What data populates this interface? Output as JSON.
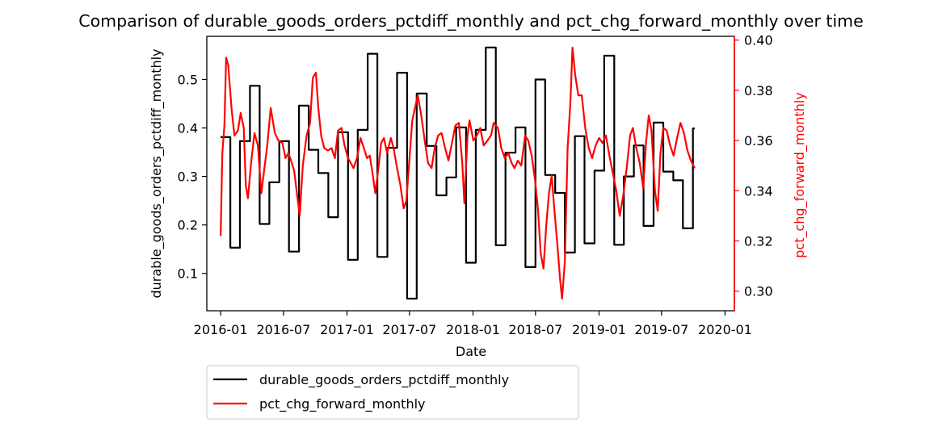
{
  "chart_data": {
    "type": "line",
    "title": "Comparison of durable_goods_orders_pctdiff_monthly and pct_chg_forward_monthly over time",
    "xlabel": "Date",
    "ylabel_left": "durable_goods_orders_pctdiff_monthly",
    "ylabel_right": "pct_chg_forward_monthly",
    "xlim": [
      "2015-11-22",
      "2020-01-28"
    ],
    "ylim_left": [
      0.023,
      0.589
    ],
    "ylim_right": [
      0.2922,
      0.4015
    ],
    "x_ticks": [
      "2016-01",
      "2016-07",
      "2017-01",
      "2017-07",
      "2018-01",
      "2018-07",
      "2019-01",
      "2019-07",
      "2020-01"
    ],
    "y_ticks_left": [
      0.1,
      0.2,
      0.3,
      0.4,
      0.5
    ],
    "y_ticks_right": [
      0.3,
      0.32,
      0.34,
      0.36,
      0.38,
      0.4
    ],
    "grid": false,
    "legend_position": "below-left",
    "colors": {
      "left_series": "#000000",
      "right_series": "#ff0000",
      "axis_text": "#000000",
      "right_axis": "#ff0000"
    },
    "series": [
      {
        "name": "durable_goods_orders_pctdiff_monthly",
        "axis": "left",
        "step": true,
        "points": [
          [
            "2016-01-01",
            0.381
          ],
          [
            "2016-01-29",
            0.153
          ],
          [
            "2016-02-26",
            0.373
          ],
          [
            "2016-03-26",
            0.487
          ],
          [
            "2016-04-23",
            0.202
          ],
          [
            "2016-05-21",
            0.288
          ],
          [
            "2016-06-19",
            0.373
          ],
          [
            "2016-07-17",
            0.145
          ],
          [
            "2016-08-15",
            0.446
          ],
          [
            "2016-09-12",
            0.355
          ],
          [
            "2016-10-10",
            0.307
          ],
          [
            "2016-11-08",
            0.216
          ],
          [
            "2016-12-06",
            0.391
          ],
          [
            "2017-01-04",
            0.128
          ],
          [
            "2017-02-01",
            0.396
          ],
          [
            "2017-03-02",
            0.553
          ],
          [
            "2017-03-30",
            0.134
          ],
          [
            "2017-04-28",
            0.359
          ],
          [
            "2017-05-26",
            0.514
          ],
          [
            "2017-06-24",
            0.048
          ],
          [
            "2017-07-22",
            0.471
          ],
          [
            "2017-08-20",
            0.363
          ],
          [
            "2017-09-17",
            0.261
          ],
          [
            "2017-10-16",
            0.298
          ],
          [
            "2017-11-13",
            0.401
          ],
          [
            "2017-12-12",
            0.122
          ],
          [
            "2018-01-09",
            0.396
          ],
          [
            "2018-02-07",
            0.566
          ],
          [
            "2018-03-08",
            0.158
          ],
          [
            "2018-04-05",
            0.349
          ],
          [
            "2018-05-04",
            0.401
          ],
          [
            "2018-06-02",
            0.113
          ],
          [
            "2018-07-01",
            0.5
          ],
          [
            "2018-07-29",
            0.303
          ],
          [
            "2018-08-27",
            0.266
          ],
          [
            "2018-09-24",
            0.143
          ],
          [
            "2018-10-23",
            0.383
          ],
          [
            "2018-11-20",
            0.162
          ],
          [
            "2018-12-19",
            0.312
          ],
          [
            "2019-01-16",
            0.549
          ],
          [
            "2019-02-14",
            0.159
          ],
          [
            "2019-03-14",
            0.3
          ],
          [
            "2019-04-12",
            0.364
          ],
          [
            "2019-05-10",
            0.198
          ],
          [
            "2019-06-08",
            0.411
          ],
          [
            "2019-07-06",
            0.31
          ],
          [
            "2019-08-04",
            0.292
          ],
          [
            "2019-09-01",
            0.193
          ],
          [
            "2019-09-30",
            0.399
          ],
          [
            "2019-10-05",
            0.399
          ]
        ]
      },
      {
        "name": "pct_chg_forward_monthly",
        "axis": "right",
        "step": false,
        "points": [
          [
            "2016-01-01",
            0.322
          ],
          [
            "2016-01-06",
            0.355
          ],
          [
            "2016-01-12",
            0.366
          ],
          [
            "2016-01-17",
            0.393
          ],
          [
            "2016-01-23",
            0.39
          ],
          [
            "2016-02-02",
            0.372
          ],
          [
            "2016-02-10",
            0.362
          ],
          [
            "2016-02-20",
            0.364
          ],
          [
            "2016-02-28",
            0.371
          ],
          [
            "2016-03-08",
            0.365
          ],
          [
            "2016-03-14",
            0.342
          ],
          [
            "2016-03-20",
            0.337
          ],
          [
            "2016-03-30",
            0.352
          ],
          [
            "2016-04-08",
            0.363
          ],
          [
            "2016-04-18",
            0.358
          ],
          [
            "2016-04-28",
            0.339
          ],
          [
            "2016-05-06",
            0.348
          ],
          [
            "2016-05-15",
            0.358
          ],
          [
            "2016-05-25",
            0.373
          ],
          [
            "2016-06-06",
            0.363
          ],
          [
            "2016-06-16",
            0.36
          ],
          [
            "2016-06-28",
            0.359
          ],
          [
            "2016-07-07",
            0.353
          ],
          [
            "2016-07-15",
            0.355
          ],
          [
            "2016-07-23",
            0.352
          ],
          [
            "2016-08-01",
            0.348
          ],
          [
            "2016-08-09",
            0.339
          ],
          [
            "2016-08-17",
            0.33
          ],
          [
            "2016-08-26",
            0.35
          ],
          [
            "2016-09-06",
            0.362
          ],
          [
            "2016-09-16",
            0.367
          ],
          [
            "2016-09-24",
            0.385
          ],
          [
            "2016-10-03",
            0.387
          ],
          [
            "2016-10-10",
            0.373
          ],
          [
            "2016-10-18",
            0.362
          ],
          [
            "2016-10-27",
            0.357
          ],
          [
            "2016-11-07",
            0.356
          ],
          [
            "2016-11-17",
            0.357
          ],
          [
            "2016-11-27",
            0.353
          ],
          [
            "2016-12-06",
            0.364
          ],
          [
            "2016-12-16",
            0.365
          ],
          [
            "2016-12-25",
            0.358
          ],
          [
            "2017-01-04",
            0.353
          ],
          [
            "2017-01-12",
            0.351
          ],
          [
            "2017-01-20",
            0.349
          ],
          [
            "2017-01-30",
            0.353
          ],
          [
            "2017-02-09",
            0.361
          ],
          [
            "2017-02-19",
            0.357
          ],
          [
            "2017-02-28",
            0.353
          ],
          [
            "2017-03-08",
            0.354
          ],
          [
            "2017-03-16",
            0.347
          ],
          [
            "2017-03-24",
            0.339
          ],
          [
            "2017-04-02",
            0.349
          ],
          [
            "2017-04-10",
            0.359
          ],
          [
            "2017-04-18",
            0.361
          ],
          [
            "2017-04-27",
            0.355
          ],
          [
            "2017-05-08",
            0.361
          ],
          [
            "2017-05-16",
            0.357
          ],
          [
            "2017-05-26",
            0.349
          ],
          [
            "2017-06-05",
            0.342
          ],
          [
            "2017-06-14",
            0.333
          ],
          [
            "2017-06-22",
            0.336
          ],
          [
            "2017-07-01",
            0.353
          ],
          [
            "2017-07-09",
            0.368
          ],
          [
            "2017-07-17",
            0.373
          ],
          [
            "2017-07-25",
            0.378
          ],
          [
            "2017-08-04",
            0.37
          ],
          [
            "2017-08-14",
            0.36
          ],
          [
            "2017-08-24",
            0.351
          ],
          [
            "2017-09-03",
            0.349
          ],
          [
            "2017-09-12",
            0.357
          ],
          [
            "2017-09-22",
            0.362
          ],
          [
            "2017-10-02",
            0.363
          ],
          [
            "2017-10-12",
            0.357
          ],
          [
            "2017-10-22",
            0.352
          ],
          [
            "2017-11-01",
            0.359
          ],
          [
            "2017-11-11",
            0.366
          ],
          [
            "2017-11-21",
            0.367
          ],
          [
            "2017-12-01",
            0.351
          ],
          [
            "2017-12-07",
            0.335
          ],
          [
            "2017-12-16",
            0.362
          ],
          [
            "2017-12-22",
            0.368
          ],
          [
            "2018-01-02",
            0.36
          ],
          [
            "2018-01-12",
            0.362
          ],
          [
            "2018-01-22",
            0.365
          ],
          [
            "2018-02-01",
            0.358
          ],
          [
            "2018-02-12",
            0.36
          ],
          [
            "2018-02-22",
            0.362
          ],
          [
            "2018-03-02",
            0.367
          ],
          [
            "2018-03-14",
            0.365
          ],
          [
            "2018-03-24",
            0.357
          ],
          [
            "2018-04-03",
            0.353
          ],
          [
            "2018-04-13",
            0.355
          ],
          [
            "2018-04-23",
            0.351
          ],
          [
            "2018-05-01",
            0.349
          ],
          [
            "2018-05-11",
            0.352
          ],
          [
            "2018-05-21",
            0.35
          ],
          [
            "2018-06-01",
            0.362
          ],
          [
            "2018-06-10",
            0.36
          ],
          [
            "2018-06-20",
            0.354
          ],
          [
            "2018-06-30",
            0.344
          ],
          [
            "2018-07-08",
            0.333
          ],
          [
            "2018-07-16",
            0.315
          ],
          [
            "2018-07-24",
            0.309
          ],
          [
            "2018-08-01",
            0.326
          ],
          [
            "2018-08-09",
            0.339
          ],
          [
            "2018-08-17",
            0.346
          ],
          [
            "2018-08-25",
            0.332
          ],
          [
            "2018-09-02",
            0.319
          ],
          [
            "2018-09-10",
            0.305
          ],
          [
            "2018-09-16",
            0.297
          ],
          [
            "2018-09-24",
            0.312
          ],
          [
            "2018-10-02",
            0.357
          ],
          [
            "2018-10-10",
            0.375
          ],
          [
            "2018-10-16",
            0.397
          ],
          [
            "2018-10-24",
            0.386
          ],
          [
            "2018-11-02",
            0.378
          ],
          [
            "2018-11-12",
            0.378
          ],
          [
            "2018-11-22",
            0.365
          ],
          [
            "2018-12-02",
            0.357
          ],
          [
            "2018-12-12",
            0.353
          ],
          [
            "2018-12-22",
            0.358
          ],
          [
            "2019-01-01",
            0.361
          ],
          [
            "2019-01-11",
            0.359
          ],
          [
            "2019-01-21",
            0.362
          ],
          [
            "2019-01-31",
            0.354
          ],
          [
            "2019-02-10",
            0.347
          ],
          [
            "2019-02-20",
            0.34
          ],
          [
            "2019-03-02",
            0.33
          ],
          [
            "2019-03-12",
            0.338
          ],
          [
            "2019-03-22",
            0.349
          ],
          [
            "2019-04-01",
            0.362
          ],
          [
            "2019-04-09",
            0.365
          ],
          [
            "2019-04-19",
            0.357
          ],
          [
            "2019-04-29",
            0.351
          ],
          [
            "2019-05-09",
            0.341
          ],
          [
            "2019-05-17",
            0.359
          ],
          [
            "2019-05-25",
            0.37
          ],
          [
            "2019-06-02",
            0.364
          ],
          [
            "2019-06-12",
            0.34
          ],
          [
            "2019-06-20",
            0.332
          ],
          [
            "2019-06-28",
            0.355
          ],
          [
            "2019-07-06",
            0.365
          ],
          [
            "2019-07-16",
            0.364
          ],
          [
            "2019-07-26",
            0.358
          ],
          [
            "2019-08-05",
            0.354
          ],
          [
            "2019-08-15",
            0.361
          ],
          [
            "2019-08-25",
            0.367
          ],
          [
            "2019-09-04",
            0.363
          ],
          [
            "2019-09-14",
            0.356
          ],
          [
            "2019-09-24",
            0.352
          ],
          [
            "2019-10-05",
            0.349
          ]
        ]
      }
    ]
  }
}
